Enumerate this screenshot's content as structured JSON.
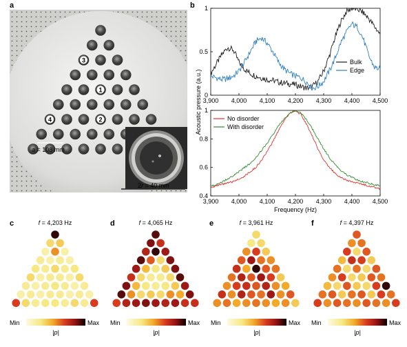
{
  "panels": {
    "a": {
      "letter": "a",
      "markers": [
        "1",
        "2",
        "3",
        "4"
      ],
      "lattice_label_a": "a = 108 mm",
      "lattice_label_a_italic": "a",
      "lattice_label_a_rest": " = 108 mm",
      "radius_label_italic": "r",
      "radius_label_pre": "2",
      "radius_label_rest": " = 40 mm"
    },
    "b": {
      "letter": "b",
      "ylabel": "Acoustic pressure (a.u.)",
      "xlabel": "Frequency (Hz)"
    },
    "c": {
      "letter": "c",
      "f_symbol": "f",
      "title_rest": " = 4,203 Hz"
    },
    "d": {
      "letter": "d",
      "f_symbol": "f",
      "title_rest": " = 4,065 Hz"
    },
    "e": {
      "letter": "e",
      "f_symbol": "f",
      "title_rest": " = 3,961 Hz"
    },
    "f": {
      "letter": "f",
      "f_symbol": "f",
      "title_rest": " = 4,397 Hz"
    }
  },
  "colorbar": {
    "min": "Min",
    "max": "Max",
    "label": "|p|"
  },
  "colors": {
    "bulk": "#1a1a1a",
    "edge": "#2f7fc1",
    "no_disorder": "#e0302c",
    "with_disorder": "#2e8b2e"
  },
  "chart_data": [
    {
      "type": "line",
      "xlim": [
        3900,
        4500
      ],
      "ylim": [
        0,
        1
      ],
      "xticks": [
        "3,900",
        "4,000",
        "4,100",
        "4,200",
        "4,300",
        "4,400",
        "4,500"
      ],
      "yticks": [
        "0",
        "0.5",
        "1"
      ],
      "legend_position": "right",
      "series": [
        {
          "name": "Bulk",
          "color": "#1a1a1a",
          "x": [
            3900,
            3920,
            3940,
            3960,
            3980,
            4000,
            4020,
            4040,
            4060,
            4080,
            4100,
            4120,
            4140,
            4160,
            4180,
            4200,
            4220,
            4240,
            4260,
            4280,
            4300,
            4320,
            4340,
            4360,
            4380,
            4400,
            4420,
            4440,
            4460,
            4480,
            4500
          ],
          "y": [
            0.25,
            0.36,
            0.47,
            0.55,
            0.52,
            0.38,
            0.3,
            0.25,
            0.22,
            0.2,
            0.18,
            0.17,
            0.15,
            0.14,
            0.13,
            0.12,
            0.1,
            0.08,
            0.1,
            0.16,
            0.28,
            0.45,
            0.66,
            0.84,
            0.96,
            1.0,
            0.99,
            0.95,
            0.88,
            0.79,
            0.7
          ]
        },
        {
          "name": "Edge",
          "color": "#2f7fc1",
          "x": [
            3900,
            3920,
            3940,
            3960,
            3980,
            4000,
            4020,
            4040,
            4060,
            4080,
            4100,
            4120,
            4140,
            4160,
            4180,
            4200,
            4220,
            4240,
            4260,
            4280,
            4300,
            4320,
            4340,
            4360,
            4380,
            4400,
            4420,
            4440,
            4460,
            4480,
            4500
          ],
          "y": [
            0.22,
            0.2,
            0.18,
            0.19,
            0.22,
            0.28,
            0.38,
            0.5,
            0.62,
            0.66,
            0.6,
            0.5,
            0.38,
            0.3,
            0.25,
            0.22,
            0.2,
            0.15,
            0.08,
            0.1,
            0.16,
            0.28,
            0.42,
            0.6,
            0.72,
            0.82,
            0.78,
            0.65,
            0.45,
            0.32,
            0.3
          ]
        }
      ]
    },
    {
      "type": "line",
      "xlim": [
        3900,
        4500
      ],
      "ylim": [
        0.4,
        1
      ],
      "xticks": [
        "3,900",
        "4,000",
        "4,100",
        "4,200",
        "4,300",
        "4,400",
        "4,500"
      ],
      "yticks": [
        "0.4",
        "0.6",
        "0.8",
        "1"
      ],
      "legend_position": "top-left",
      "series": [
        {
          "name": "No disorder",
          "color": "#e0302c",
          "x": [
            3900,
            3920,
            3940,
            3960,
            3980,
            4000,
            4020,
            4040,
            4060,
            4080,
            4100,
            4120,
            4140,
            4160,
            4180,
            4200,
            4220,
            4240,
            4260,
            4280,
            4300,
            4320,
            4340,
            4360,
            4380,
            4400,
            4420,
            4440,
            4460,
            4480,
            4500
          ],
          "y": [
            0.46,
            0.47,
            0.48,
            0.49,
            0.5,
            0.52,
            0.54,
            0.57,
            0.6,
            0.65,
            0.71,
            0.78,
            0.86,
            0.93,
            0.98,
            1.0,
            0.97,
            0.9,
            0.82,
            0.73,
            0.65,
            0.6,
            0.56,
            0.53,
            0.51,
            0.5,
            0.49,
            0.48,
            0.47,
            0.46,
            0.45
          ]
        },
        {
          "name": "With disorder",
          "color": "#2e8b2e",
          "x": [
            3900,
            3920,
            3940,
            3960,
            3980,
            4000,
            4020,
            4040,
            4060,
            4080,
            4100,
            4120,
            4140,
            4160,
            4180,
            4200,
            4220,
            4240,
            4260,
            4280,
            4300,
            4320,
            4340,
            4360,
            4380,
            4400,
            4420,
            4440,
            4460,
            4480,
            4500
          ],
          "y": [
            0.47,
            0.48,
            0.5,
            0.52,
            0.54,
            0.57,
            0.6,
            0.63,
            0.67,
            0.72,
            0.77,
            0.83,
            0.89,
            0.94,
            0.98,
            1.0,
            0.98,
            0.93,
            0.87,
            0.8,
            0.73,
            0.67,
            0.62,
            0.58,
            0.55,
            0.53,
            0.51,
            0.5,
            0.49,
            0.48,
            0.47
          ]
        }
      ]
    },
    {
      "type": "heatmap",
      "panel": "c",
      "layout": "triangle",
      "rows": [
        [
          0.95
        ],
        [
          0.3,
          0.35
        ],
        [
          0.15,
          0.5,
          0.15
        ],
        [
          0.2,
          0.15,
          0.2,
          0.15
        ],
        [
          0.25,
          0.2,
          0.3,
          0.2,
          0.25
        ],
        [
          0.3,
          0.15,
          0.2,
          0.2,
          0.15,
          0.3
        ],
        [
          0.2,
          0.15,
          0.2,
          0.25,
          0.2,
          0.15,
          0.2
        ],
        [
          0.15,
          0.2,
          0.15,
          0.2,
          0.2,
          0.15,
          0.2,
          0.15
        ],
        [
          0.65,
          0.3,
          0.2,
          0.25,
          0.25,
          0.2,
          0.3,
          0.2,
          0.65
        ]
      ]
    },
    {
      "type": "heatmap",
      "panel": "d",
      "layout": "triangle",
      "rows": [
        [
          0.9
        ],
        [
          0.85,
          0.7
        ],
        [
          0.75,
          0.95,
          0.8
        ],
        [
          0.9,
          0.6,
          0.3,
          0.85
        ],
        [
          0.8,
          0.4,
          0.25,
          0.35,
          0.85
        ],
        [
          0.7,
          0.3,
          0.2,
          0.2,
          0.3,
          0.9
        ],
        [
          0.85,
          0.4,
          0.25,
          0.2,
          0.25,
          0.35,
          0.8
        ],
        [
          0.9,
          0.5,
          0.3,
          0.35,
          0.3,
          0.5,
          0.45,
          0.85
        ],
        [
          0.65,
          0.75,
          0.8,
          0.85,
          0.8,
          0.75,
          0.8,
          0.7,
          0.7
        ]
      ]
    },
    {
      "type": "heatmap",
      "panel": "e",
      "layout": "triangle",
      "rows": [
        [
          0.3
        ],
        [
          0.25,
          0.3
        ],
        [
          0.5,
          0.65,
          0.35
        ],
        [
          0.6,
          0.8,
          0.55,
          0.5
        ],
        [
          0.7,
          0.45,
          0.95,
          0.6,
          0.55
        ],
        [
          0.55,
          0.75,
          0.6,
          0.8,
          0.65,
          0.35
        ],
        [
          0.5,
          0.65,
          0.7,
          0.6,
          0.75,
          0.5,
          0.45
        ],
        [
          0.7,
          0.5,
          0.75,
          0.6,
          0.55,
          0.8,
          0.5,
          0.6
        ],
        [
          0.5,
          0.55,
          0.45,
          0.5,
          0.55,
          0.5,
          0.45,
          0.5,
          0.35
        ]
      ]
    },
    {
      "type": "heatmap",
      "panel": "f",
      "layout": "triangle",
      "rows": [
        [
          0.6
        ],
        [
          0.5,
          0.55
        ],
        [
          0.65,
          0.3,
          0.6
        ],
        [
          0.4,
          0.7,
          0.65,
          0.35
        ],
        [
          0.55,
          0.3,
          0.55,
          0.3,
          0.6
        ],
        [
          0.5,
          0.65,
          0.3,
          0.35,
          0.6,
          0.55
        ],
        [
          0.4,
          0.3,
          0.6,
          0.35,
          0.3,
          0.65,
          0.95
        ],
        [
          0.55,
          0.6,
          0.35,
          0.55,
          0.6,
          0.35,
          0.65,
          0.55
        ],
        [
          0.65,
          0.5,
          0.6,
          0.55,
          0.5,
          0.6,
          0.55,
          0.5,
          0.65
        ]
      ]
    }
  ]
}
